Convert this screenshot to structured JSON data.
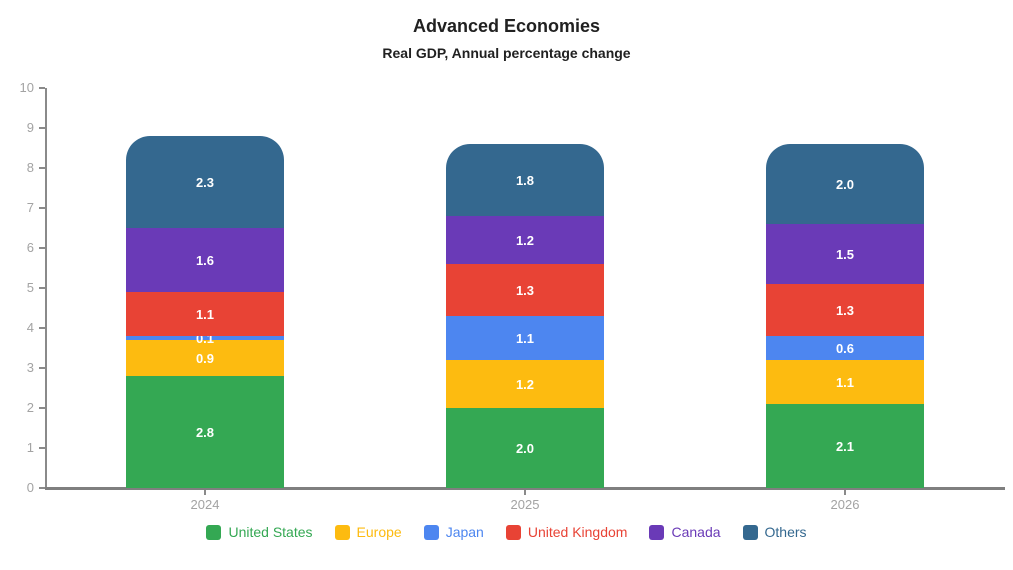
{
  "chart_data": {
    "type": "bar",
    "stacked": true,
    "title": "Advanced Economies",
    "subtitle": "Real GDP, Annual percentage change",
    "categories": [
      "2024",
      "2025",
      "2026"
    ],
    "series": [
      {
        "name": "United States",
        "color": "#34A853",
        "values": [
          2.8,
          2.0,
          2.1
        ]
      },
      {
        "name": "Europe",
        "color": "#FDBB10",
        "values": [
          0.9,
          1.2,
          1.1
        ]
      },
      {
        "name": "Japan",
        "color": "#4D86F0",
        "values": [
          0.1,
          1.1,
          0.6
        ]
      },
      {
        "name": "United Kingdom",
        "color": "#E84335",
        "values": [
          1.1,
          1.3,
          1.3
        ]
      },
      {
        "name": "Canada",
        "color": "#6A3AB7",
        "values": [
          1.6,
          1.2,
          1.5
        ]
      },
      {
        "name": "Others",
        "color": "#34688F",
        "values": [
          2.3,
          1.8,
          2.0
        ]
      }
    ],
    "ylim": [
      0,
      10
    ],
    "yticks": [
      0,
      1,
      2,
      3,
      4,
      5,
      6,
      7,
      8,
      9,
      10
    ],
    "grid": false,
    "legend_position": "bottom",
    "bar_label_color": "#FFFFFF",
    "axis_color": "#8A8A8A",
    "baseline_color": "#7F7F7F",
    "tick_label_color": "#A3A3A3"
  }
}
